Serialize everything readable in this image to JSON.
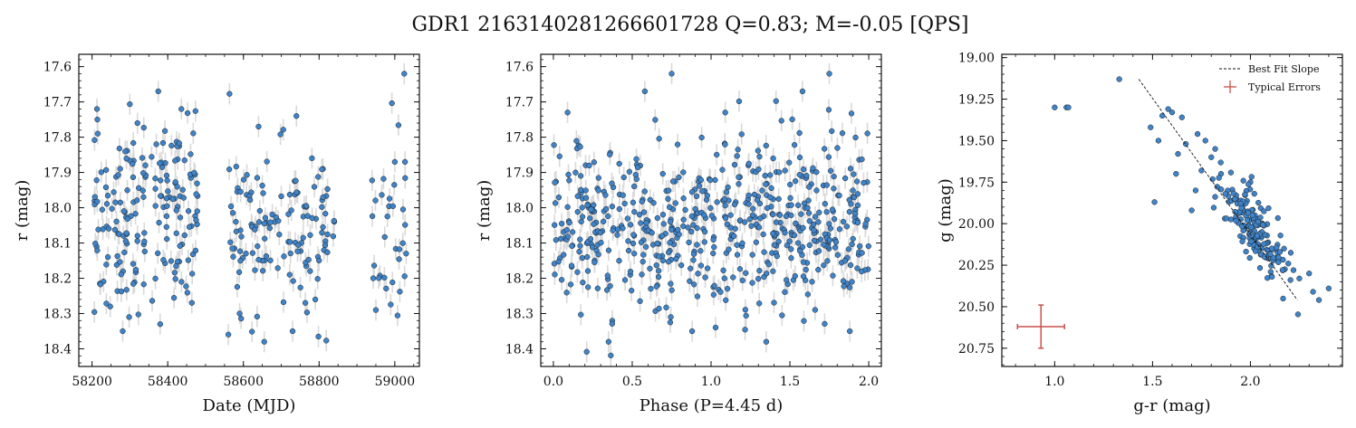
{
  "figure": {
    "title": "GDR1 2163140281266601728  Q=0.83; M=-0.05 [QPS]"
  },
  "colors": {
    "point_fill": "#3f84c9",
    "point_edge": "#1a1a1a",
    "error_bar": "#d9d9d9",
    "typical_error": "#c8504a",
    "fit_line": "#111111"
  },
  "chart_data": [
    {
      "type": "scatter",
      "name_key": "lightcurve",
      "xlabel": "Date (MJD)",
      "ylabel": "r (mag)",
      "xlim": [
        58165,
        59065
      ],
      "ylim": [
        18.45,
        17.565
      ],
      "y_inverted": true,
      "xticks": [
        58200,
        58400,
        58600,
        58800,
        59000
      ],
      "xtick_labels": [
        "58200",
        "58400",
        "58600",
        "58800",
        "59000"
      ],
      "yticks": [
        17.6,
        17.7,
        17.8,
        17.9,
        18.0,
        18.1,
        18.2,
        18.3,
        18.4
      ],
      "ytick_labels": [
        "17.6",
        "17.7",
        "17.8",
        "17.9",
        "18.0",
        "18.1",
        "18.2",
        "18.3",
        "18.4"
      ],
      "xticks_minor_step": 50,
      "yticks_minor_step": 0.02,
      "y_error": 0.03,
      "clusters": [
        {
          "x": [
            58205,
            58480
          ],
          "n": 175,
          "y_mean": 18.02,
          "y_sd": 0.13
        },
        {
          "x": [
            58560,
            58840
          ],
          "n": 125,
          "y_mean": 18.06,
          "y_sd": 0.11
        },
        {
          "x": [
            58935,
            59030
          ],
          "n": 30,
          "y_mean": 18.08,
          "y_sd": 0.13
        }
      ],
      "points": [
        {
          "x": 58213,
          "y": 17.72
        },
        {
          "x": 58214,
          "y": 17.75
        },
        {
          "x": 58215,
          "y": 17.79
        },
        {
          "x": 58212,
          "y": 18.11
        },
        {
          "x": 58242,
          "y": 18.14
        },
        {
          "x": 58248,
          "y": 18.28
        },
        {
          "x": 58281,
          "y": 18.35
        },
        {
          "x": 58298,
          "y": 18.31
        },
        {
          "x": 58320,
          "y": 17.76
        },
        {
          "x": 58375,
          "y": 17.67
        },
        {
          "x": 58380,
          "y": 18.33
        },
        {
          "x": 58420,
          "y": 17.93
        },
        {
          "x": 58478,
          "y": 18.01
        },
        {
          "x": 58640,
          "y": 17.77
        },
        {
          "x": 58655,
          "y": 18.38
        },
        {
          "x": 58590,
          "y": 18.3
        },
        {
          "x": 58730,
          "y": 18.35
        },
        {
          "x": 58740,
          "y": 17.74
        },
        {
          "x": 58810,
          "y": 17.89
        },
        {
          "x": 58840,
          "y": 18.04
        },
        {
          "x": 58790,
          "y": 18.26
        },
        {
          "x": 59025,
          "y": 17.62
        },
        {
          "x": 58943,
          "y": 18.2
        },
        {
          "x": 58950,
          "y": 18.29
        },
        {
          "x": 59000,
          "y": 17.87
        },
        {
          "x": 59027,
          "y": 17.87
        },
        {
          "x": 59030,
          "y": 18.13
        },
        {
          "x": 58580,
          "y": 18.04
        }
      ]
    },
    {
      "type": "scatter",
      "name_key": "phased",
      "xlabel": "Phase (P=4.45 d)",
      "ylabel": "r (mag)",
      "xlim": [
        -0.08,
        2.08
      ],
      "ylim": [
        18.45,
        17.565
      ],
      "y_inverted": true,
      "xticks": [
        0.0,
        0.5,
        1.0,
        1.5,
        2.0
      ],
      "xtick_labels": [
        "0.0",
        "0.5",
        "1.0",
        "1.5",
        "2.0"
      ],
      "yticks": [
        17.6,
        17.7,
        17.8,
        17.9,
        18.0,
        18.1,
        18.2,
        18.3,
        18.4
      ],
      "ytick_labels": [
        "17.6",
        "17.7",
        "17.8",
        "17.9",
        "18.0",
        "18.1",
        "18.2",
        "18.3",
        "18.4"
      ],
      "xticks_minor_step": 0.1,
      "yticks_minor_step": 0.02,
      "y_error": 0.03,
      "period_days": 4.45,
      "clusters": [
        {
          "x": [
            0.0,
            2.0
          ],
          "n": 600,
          "y_mean": 18.04,
          "y_sd": 0.12
        }
      ],
      "points": [
        {
          "x": 0.75,
          "y": 17.62
        },
        {
          "x": 1.75,
          "y": 17.62
        },
        {
          "x": 0.58,
          "y": 17.67
        },
        {
          "x": 1.58,
          "y": 17.67
        },
        {
          "x": 0.35,
          "y": 18.38
        },
        {
          "x": 1.35,
          "y": 18.38
        },
        {
          "x": 0.88,
          "y": 18.35
        },
        {
          "x": 1.88,
          "y": 18.35
        },
        {
          "x": 0.09,
          "y": 17.73
        },
        {
          "x": 1.09,
          "y": 17.73
        }
      ]
    },
    {
      "type": "scatter",
      "name_key": "color_magnitude",
      "xlabel": "g-r (mag)",
      "ylabel": "g (mag)",
      "xlim": [
        0.73,
        2.47
      ],
      "ylim": [
        20.86,
        18.98
      ],
      "y_inverted": true,
      "xticks": [
        1.0,
        1.5,
        2.0
      ],
      "xtick_labels": [
        "1.0",
        "1.5",
        "2.0"
      ],
      "yticks": [
        19.0,
        19.25,
        19.5,
        19.75,
        20.0,
        20.25,
        20.5,
        20.75
      ],
      "ytick_labels": [
        "19.00",
        "19.25",
        "19.50",
        "19.75",
        "20.00",
        "20.25",
        "20.50",
        "20.75"
      ],
      "xticks_minor_step": 0.1,
      "yticks_minor_step": 0.05,
      "clusters": [
        {
          "x": [
            1.85,
            2.2
          ],
          "n": 170,
          "y_mean": 20.03,
          "y_sd": 0.14
        }
      ],
      "points": [
        {
          "x": 1.0,
          "y": 19.3
        },
        {
          "x": 1.06,
          "y": 19.3
        },
        {
          "x": 1.07,
          "y": 19.3
        },
        {
          "x": 1.33,
          "y": 19.13
        },
        {
          "x": 1.49,
          "y": 19.42
        },
        {
          "x": 1.51,
          "y": 19.87
        },
        {
          "x": 1.53,
          "y": 19.5
        },
        {
          "x": 1.55,
          "y": 19.35
        },
        {
          "x": 1.58,
          "y": 19.31
        },
        {
          "x": 1.6,
          "y": 19.33
        },
        {
          "x": 1.62,
          "y": 19.7
        },
        {
          "x": 1.63,
          "y": 19.58
        },
        {
          "x": 1.65,
          "y": 19.36
        },
        {
          "x": 1.67,
          "y": 19.52
        },
        {
          "x": 1.7,
          "y": 19.92
        },
        {
          "x": 1.72,
          "y": 19.8
        },
        {
          "x": 1.73,
          "y": 19.46
        },
        {
          "x": 1.75,
          "y": 19.68
        },
        {
          "x": 1.77,
          "y": 19.5
        },
        {
          "x": 1.8,
          "y": 19.6
        },
        {
          "x": 1.82,
          "y": 19.55
        },
        {
          "x": 1.85,
          "y": 19.7
        },
        {
          "x": 2.3,
          "y": 20.3
        },
        {
          "x": 2.35,
          "y": 20.46
        },
        {
          "x": 2.4,
          "y": 20.39
        },
        {
          "x": 2.32,
          "y": 20.41
        },
        {
          "x": 2.25,
          "y": 20.33
        },
        {
          "x": 2.22,
          "y": 20.28
        },
        {
          "x": 2.0,
          "y": 19.75
        },
        {
          "x": 2.02,
          "y": 19.82
        }
      ],
      "fit_line": {
        "x": [
          1.43,
          2.24
        ],
        "y": [
          19.13,
          20.46
        ]
      },
      "typical_error": {
        "x": 0.93,
        "y": 20.62,
        "x_err": 0.12,
        "y_err": 0.13
      },
      "legend": {
        "placement": "top-right",
        "entries": [
          "Best Fit Slope",
          "Typical Errors"
        ]
      }
    }
  ]
}
